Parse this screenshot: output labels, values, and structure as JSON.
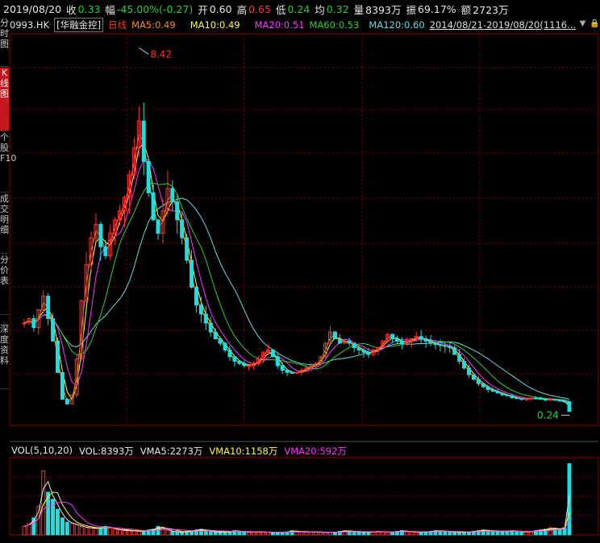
{
  "quote": {
    "date": "2019/08/20",
    "close_label": "收",
    "close": "0.33",
    "change_label": "幅",
    "change": "-45.00%(-0.27)",
    "open_label": "开",
    "open": "0.60",
    "high_label": "高",
    "high": "0.65",
    "low_label": "低",
    "low": "0.24",
    "avg_label": "均",
    "avg": "0.32",
    "volume_label": "量",
    "volume": "8393万",
    "amplitude_label": "振",
    "amplitude": "69.17%",
    "amount_label": "额",
    "amount": "2723万"
  },
  "side_tabs": [
    {
      "label": "分时图",
      "active": false
    },
    {
      "label": "K线图",
      "active": true
    },
    {
      "label": "个股F10",
      "active": false
    },
    {
      "label": "成交明细",
      "active": false
    },
    {
      "label": "分价表",
      "active": false
    },
    {
      "label": "深度资料",
      "active": false
    }
  ],
  "legend": {
    "code": "0993.HK",
    "name": "[华融金控]",
    "period": "日线",
    "ma5": "MA5:0.49",
    "ma10": "MA10:0.49",
    "ma20": "MA20:0.51",
    "ma60": "MA60:0.53",
    "ma120": "MA120:0.60",
    "range": "2014/08/21-2019/08/20(1116..."
  },
  "icons": [
    "dropdown-triangle-icon",
    "lock-icon"
  ],
  "colors": {
    "up": "#ff3333",
    "down": "#22dddd",
    "ma5": "#ff8c1a",
    "ma10": "#ffff33",
    "ma20": "#ff33ff",
    "ma60": "#33cc33",
    "ma120": "#66dddd",
    "grid": "#8b0000"
  },
  "chart_data": {
    "type": "line",
    "description_series": "close price (estimated from chart)",
    "annotations": [
      {
        "label": "8.42",
        "kind": "max"
      },
      {
        "label": "0.24",
        "kind": "min"
      }
    ],
    "price_series": [
      2.3,
      2.4,
      2.2,
      2.6,
      2.9,
      2.4,
      1.9,
      1.2,
      0.6,
      0.5,
      0.7,
      1.5,
      2.8,
      3.6,
      4.2,
      4.5,
      4.0,
      3.8,
      4.3,
      4.6,
      4.8,
      5.1,
      5.6,
      6.2,
      6.8,
      5.9,
      5.2,
      4.6,
      4.3,
      4.8,
      5.3,
      5.0,
      4.6,
      4.2,
      3.7,
      3.1,
      2.7,
      2.5,
      2.3,
      2.1,
      1.95,
      1.85,
      1.7,
      1.55,
      1.45,
      1.4,
      1.35,
      1.35,
      1.4,
      1.5,
      1.65,
      1.7,
      1.55,
      1.35,
      1.25,
      1.2,
      1.18,
      1.2,
      1.25,
      1.3,
      1.35,
      1.4,
      1.55,
      1.85,
      2.1,
      1.95,
      1.85,
      1.9,
      1.85,
      1.75,
      1.7,
      1.65,
      1.6,
      1.7,
      1.75,
      1.9,
      2.05,
      1.95,
      1.9,
      1.85,
      1.9,
      1.95,
      2.0,
      1.95,
      1.9,
      1.85,
      1.82,
      1.8,
      1.78,
      1.75,
      1.6,
      1.45,
      1.3,
      1.15,
      1.05,
      0.95,
      0.88,
      0.82,
      0.78,
      0.74,
      0.7,
      0.68,
      0.64,
      0.62,
      0.6,
      0.61,
      0.63,
      0.62,
      0.6,
      0.59,
      0.6,
      0.58,
      0.56,
      0.55,
      0.33
    ],
    "volume_series": [
      0.6,
      0.8,
      1.2,
      2.0,
      4.5,
      3.0,
      2.5,
      1.8,
      1.2,
      0.9,
      0.8,
      0.7,
      0.6,
      0.5,
      0.5,
      0.45,
      0.5,
      0.6,
      0.5,
      0.4,
      0.35,
      0.3,
      0.3,
      0.28,
      0.25,
      0.3,
      0.35,
      0.4,
      0.6,
      0.5,
      0.3,
      0.25,
      0.2,
      0.2,
      0.25,
      0.3,
      0.35,
      0.4,
      0.3,
      0.25,
      0.2,
      0.2,
      0.22,
      0.25,
      0.3,
      0.25,
      0.2,
      0.18,
      0.2,
      0.22,
      0.2,
      0.18,
      0.17,
      0.18,
      0.2,
      0.22,
      0.3,
      0.25,
      0.2,
      0.2,
      0.22,
      0.2,
      0.18,
      0.17,
      0.18,
      0.2,
      0.25,
      0.3,
      0.28,
      0.22,
      0.2,
      0.18,
      0.2,
      0.22,
      0.25,
      0.2,
      0.18,
      0.2,
      0.25,
      0.3,
      0.25,
      0.2,
      0.18,
      0.2,
      0.22,
      0.25,
      0.3,
      0.28,
      0.25,
      0.22,
      0.2,
      0.18,
      0.2,
      0.22,
      0.25,
      0.3,
      0.35,
      0.3,
      0.25,
      0.22,
      0.25,
      0.28,
      0.3,
      0.25,
      0.22,
      0.2,
      0.25,
      0.3,
      0.35,
      0.4,
      0.5,
      0.45,
      0.4,
      0.5,
      5.0
    ]
  },
  "volume_legend": {
    "name": "VOL(5,10,20)",
    "vol": "VOL:8393万",
    "vma5": "VMA5:2273万",
    "vma10": "VMA10:1158万",
    "vma20": "VMA20:592万"
  }
}
